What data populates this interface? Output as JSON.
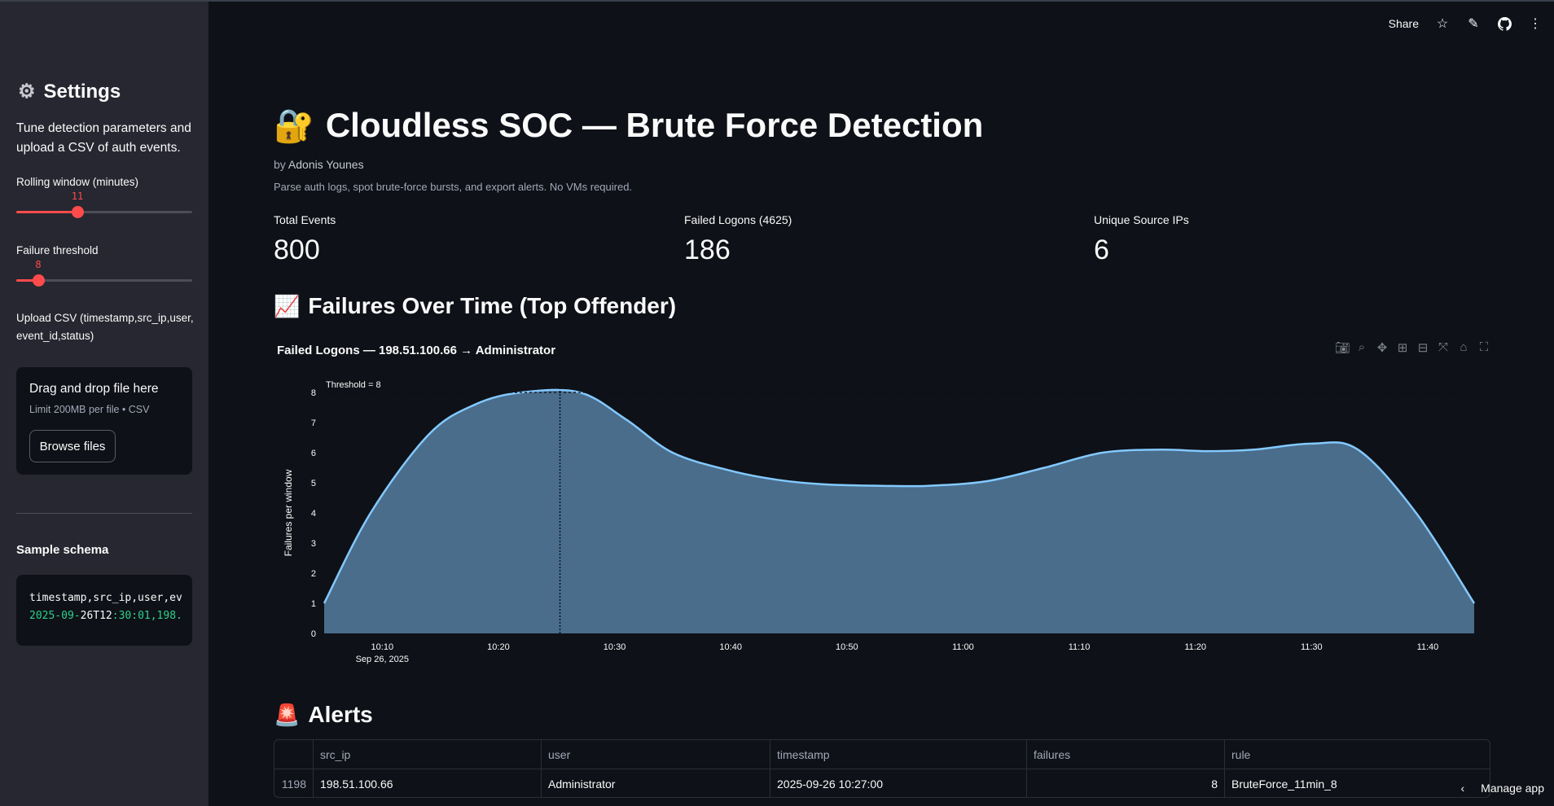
{
  "sidebar": {
    "title": "Settings",
    "description": "Tune detection parameters and upload a CSV of auth events.",
    "rolling_window": {
      "label": "Rolling window (minutes)",
      "value": "11",
      "min": 1,
      "max": 30
    },
    "failure_threshold": {
      "label": "Failure threshold",
      "value": "8",
      "min": 1,
      "max": 50
    },
    "upload": {
      "label": "Upload CSV (timestamp,src_ip,user,event_id,status)",
      "drop_text": "Drag and drop file here",
      "limit_text": "Limit 200MB per file • CSV",
      "browse_label": "Browse files"
    },
    "schema_title": "Sample schema",
    "schema_line1": "timestamp,src_ip,user,ev",
    "schema_line2_a": "2025-09-",
    "schema_line2_b": "26T12",
    "schema_line2_c": ":30:01,198."
  },
  "toolbar": {
    "share_label": "Share"
  },
  "main": {
    "title_emoji": "🔐",
    "title": "Cloudless SOC — Brute Force Detection",
    "by_prefix": "by",
    "author": "Adonis Younes",
    "caption": "Parse auth logs, spot brute-force bursts, and export alerts. No VMs required."
  },
  "metrics": [
    {
      "label": "Total Events",
      "value": "800"
    },
    {
      "label": "Failed Logons (4625)",
      "value": "186"
    },
    {
      "label": "Unique Source IPs",
      "value": "6"
    }
  ],
  "section_chart": {
    "emoji": "📈",
    "title": "Failures Over Time (Top Offender)"
  },
  "chart_data": {
    "type": "area",
    "title": "Failed Logons — 198.51.100.66 → Administrator",
    "ylabel": "Failures per window",
    "xlabel": "",
    "ylim": [
      0,
      8
    ],
    "yticks": [
      "0",
      "1",
      "2",
      "3",
      "4",
      "5",
      "6",
      "7",
      "8"
    ],
    "x_ticks": [
      "10:10",
      "10:20",
      "10:30",
      "10:40",
      "10:50",
      "11:00",
      "11:10",
      "11:20",
      "11:30",
      "11:40"
    ],
    "x_tick_sub": "Sep 26, 2025",
    "x_range_minutes": [
      605,
      704
    ],
    "threshold": {
      "value": 8,
      "label": "Threshold = 8"
    },
    "hover_x_minutes": 625.3,
    "series": [
      {
        "x_minutes": [
          605,
          609,
          614,
          618,
          622,
          627,
          631,
          635,
          640,
          644,
          648,
          653,
          657,
          662,
          667,
          672,
          677,
          681,
          685,
          690,
          694,
          699,
          704
        ],
        "values": [
          1,
          4,
          6.6,
          7.6,
          8,
          8,
          7.1,
          6,
          5.4,
          5.1,
          4.95,
          4.9,
          4.9,
          5.05,
          5.5,
          6,
          6.1,
          6.05,
          6.1,
          6.3,
          6.1,
          4,
          1
        ]
      }
    ]
  },
  "section_alerts": {
    "emoji": "🚨",
    "title": "Alerts"
  },
  "alerts": {
    "columns": [
      "src_ip",
      "user",
      "timestamp",
      "failures",
      "rule"
    ],
    "rows": [
      {
        "index": "1198",
        "src_ip": "198.51.100.66",
        "user": "Administrator",
        "timestamp": "2025-09-26 10:27:00",
        "failures": "8",
        "rule": "BruteForce_11min_8"
      }
    ]
  },
  "footer": {
    "manage_label": "Manage app"
  },
  "colors": {
    "accent": "#ff4b4b",
    "line": "#83c9ff",
    "fill": "#4a6d8c"
  }
}
